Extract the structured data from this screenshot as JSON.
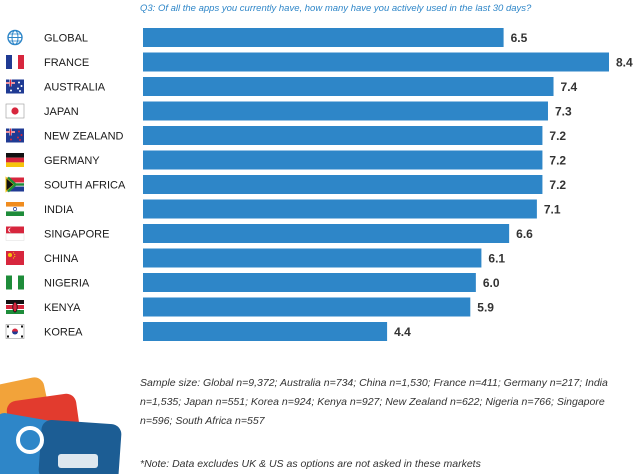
{
  "question": "Q3: Of all the apps you currently have, how many have you actively used in the last 30 days?",
  "chart_data": {
    "type": "bar",
    "orientation": "horizontal",
    "title": "",
    "categories": [
      "GLOBAL",
      "FRANCE",
      "AUSTRALIA",
      "JAPAN",
      "NEW ZEALAND",
      "GERMANY",
      "SOUTH AFRICA",
      "INDIA",
      "SINGAPORE",
      "CHINA",
      "NIGERIA",
      "KENYA",
      "KOREA"
    ],
    "values": [
      6.5,
      8.4,
      7.4,
      7.3,
      7.2,
      7.2,
      7.2,
      7.1,
      6.6,
      6.1,
      6.0,
      5.9,
      4.4
    ],
    "value_labels": [
      "6.5",
      "8.4",
      "7.4",
      "7.3",
      "7.2",
      "7.2",
      "7.2",
      "7.1",
      "6.6",
      "6.1",
      "6.0",
      "5.9",
      "4.4"
    ],
    "xlim": [
      0,
      8.4
    ],
    "bar_color": "#2e86c8",
    "grid": false,
    "legend": "none"
  },
  "flags": [
    "globe-icon",
    "france-flag",
    "australia-flag",
    "japan-flag",
    "new-zealand-flag",
    "germany-flag",
    "south-africa-flag",
    "india-flag",
    "singapore-flag",
    "china-flag",
    "nigeria-flag",
    "kenya-flag",
    "korea-flag"
  ],
  "notes": {
    "sample": "Sample size: Global n=9,372; Australia n=734; China n=1,530; France n=411; Germany n=217; India n=1,535; Japan n=551; Korea n=924; Kenya n=927; New Zealand n=622; Nigeria n=766; Singapore n=596; South Africa n=557",
    "footnote": "*Note: Data excludes UK & US as options are not asked in these markets"
  }
}
